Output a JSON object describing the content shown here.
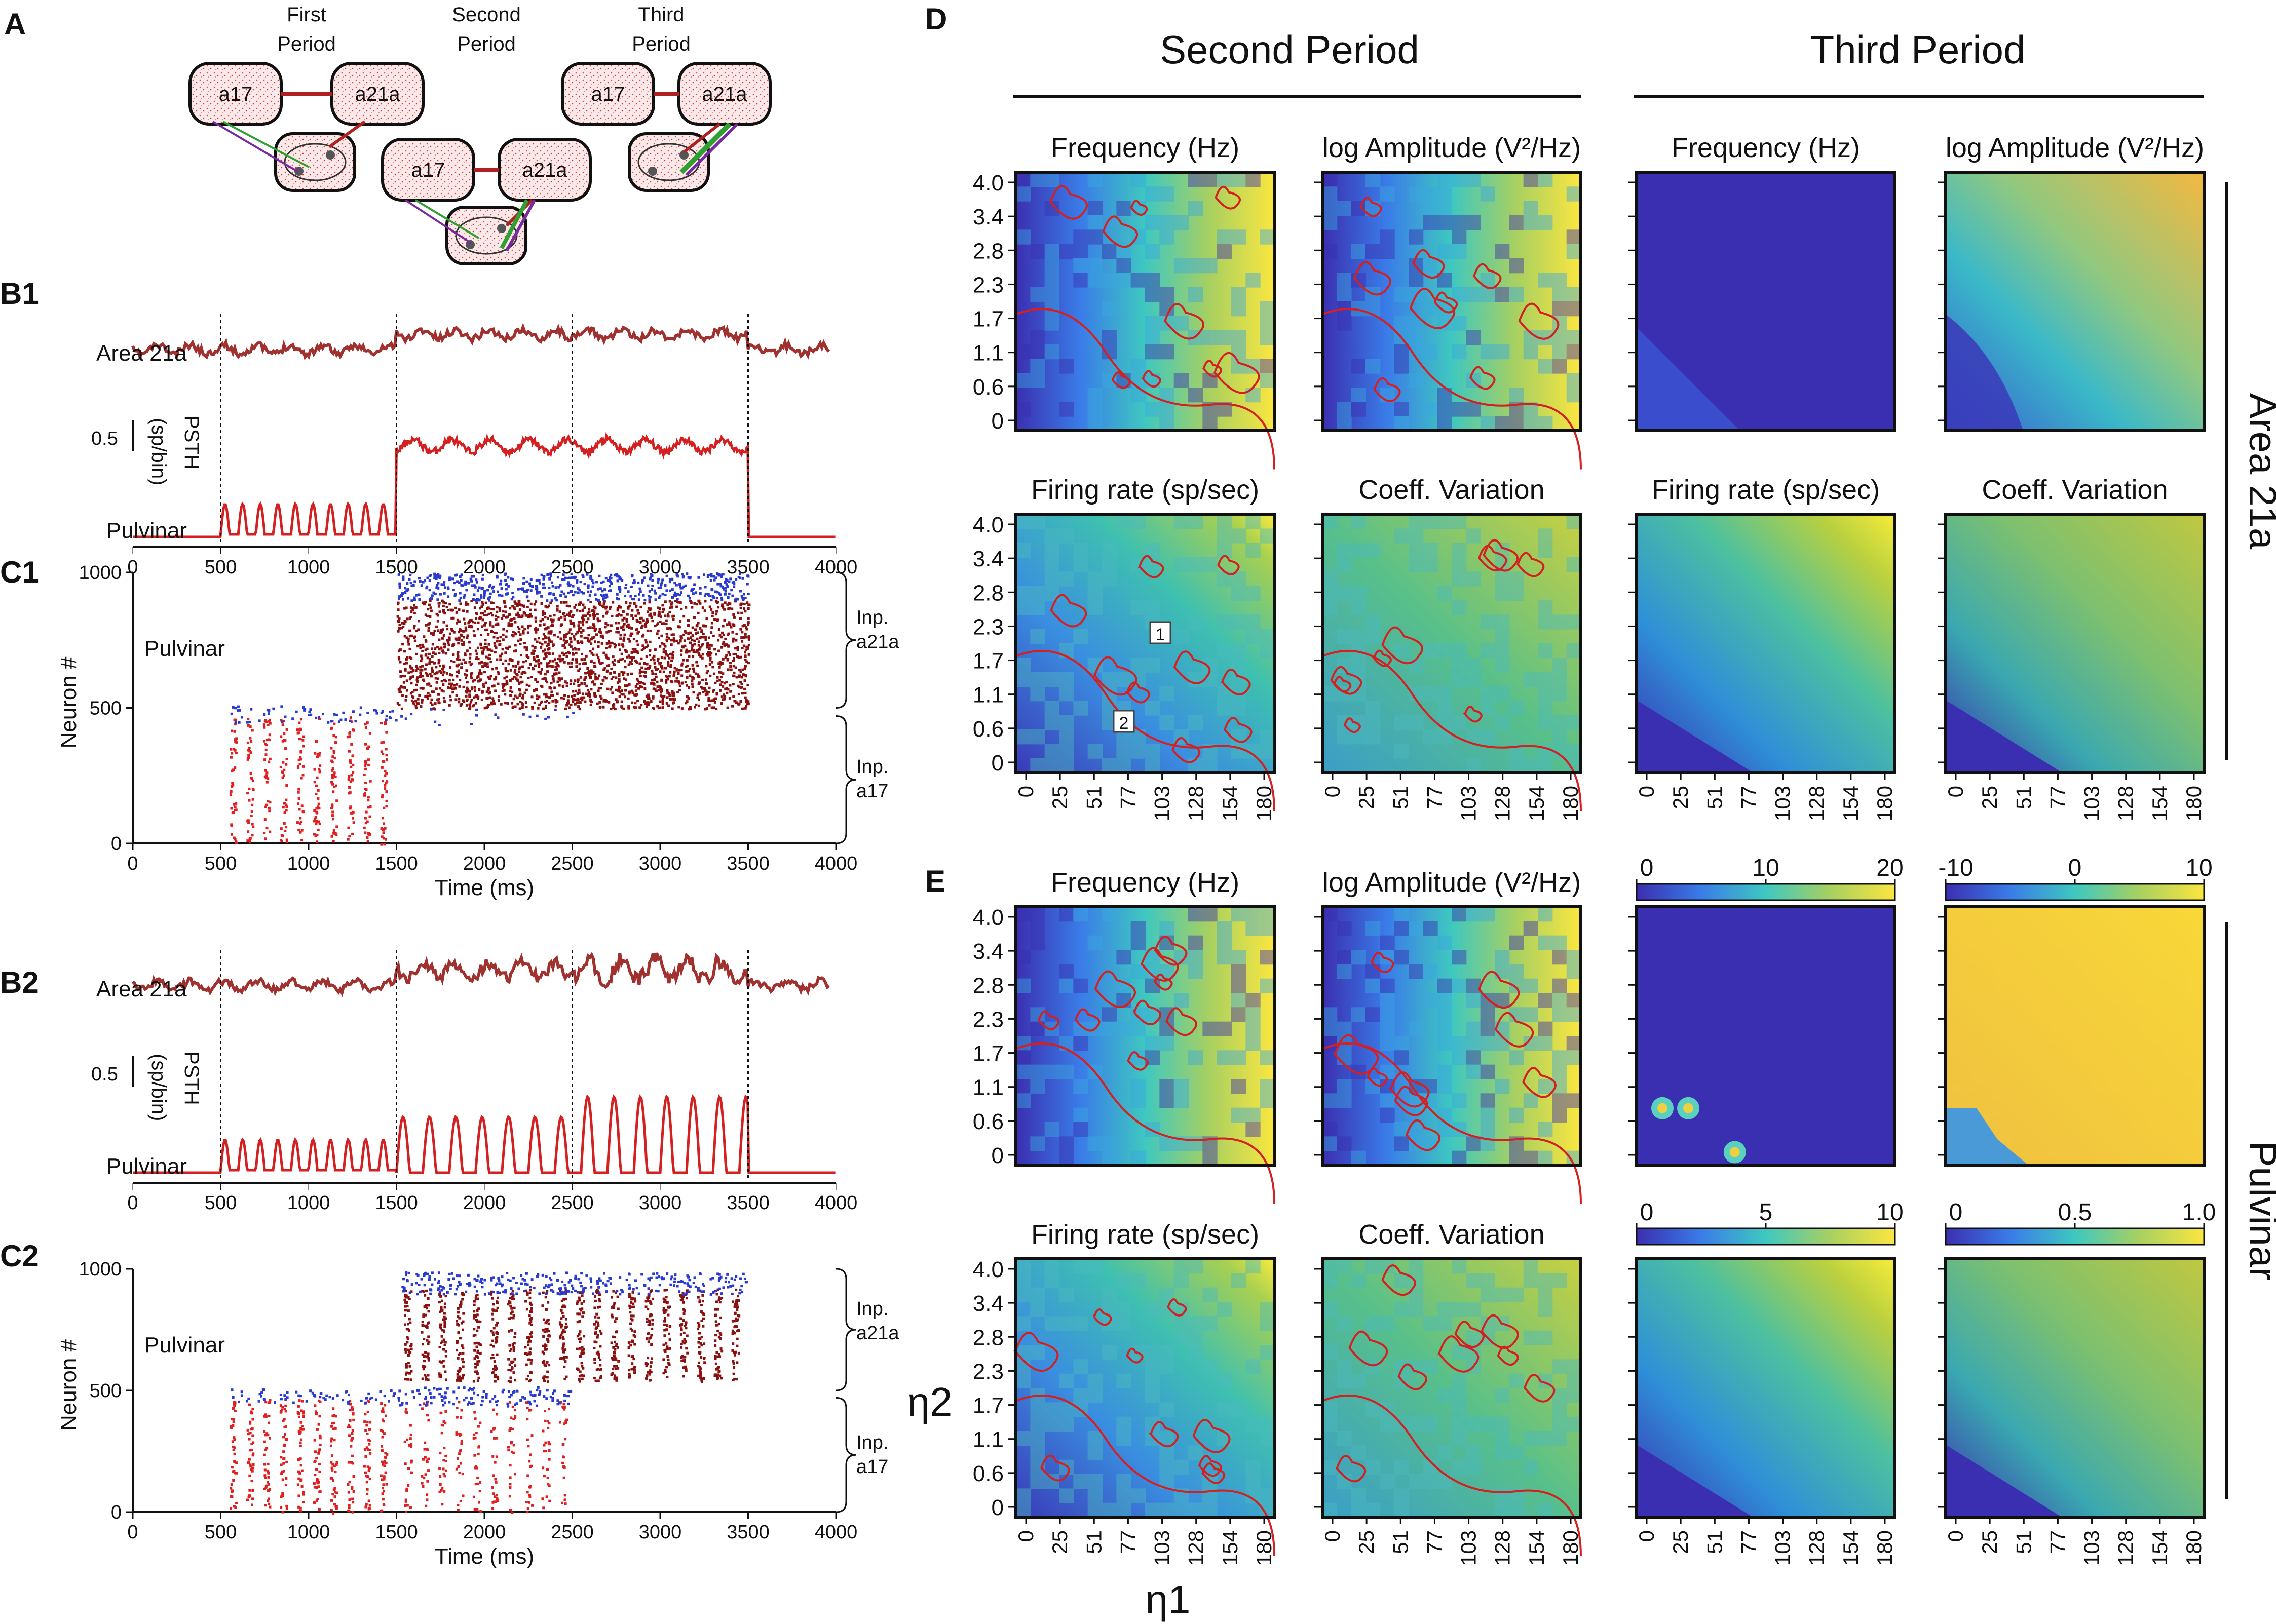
{
  "panels": {
    "A": "A",
    "B1": "B1",
    "C1": "C1",
    "B2": "B2",
    "C2": "C2",
    "D": "D",
    "E": "E"
  },
  "schematic": {
    "periods": [
      "First\nPeriod",
      "Second\nPeriod",
      "Third\nPeriod"
    ],
    "area17": "a17",
    "area21a": "a21a"
  },
  "traces": {
    "area21a_label": "Area  21a",
    "pulvinar_label": "Pulvinar",
    "psth_label": "PSTH",
    "psth_units": "(sp/bin)",
    "scale_value": "0.5",
    "x_ticks": [
      "0",
      "500",
      "1000",
      "1500",
      "2000",
      "2500",
      "3000",
      "3500",
      "4000"
    ]
  },
  "raster": {
    "region_label": "Pulvinar",
    "ylabel": "Neuron  #",
    "xlabel": "Time  (ms)",
    "y_ticks": [
      "0",
      "500",
      "1000"
    ],
    "inp_a21a": "Inp.\na21a",
    "inp_a17": "Inp.\na17"
  },
  "grid": {
    "section_D_headers": [
      "Second  Period",
      "Third  Period"
    ],
    "titles_row1": [
      "Frequency  (Hz)",
      "log  Amplitude  (V²/Hz)",
      "Frequency  (Hz)",
      "log  Amplitude  (V²/Hz)"
    ],
    "titles_row2": [
      "Firing  rate  (sp/sec)",
      "Coeff.  Variation",
      "Firing  rate  (sp/sec)",
      "Coeff.  Variation"
    ],
    "y_ticks": [
      "4.0",
      "3.4",
      "2.8",
      "2.3",
      "1.7",
      "1.1",
      "0.6",
      "0"
    ],
    "x_ticks": [
      "0",
      "25",
      "51",
      "77",
      "103",
      "128",
      "154",
      "180"
    ],
    "eta1": "η1",
    "eta2": "η2",
    "side_labels": [
      "Area  21a",
      "Pulvinar"
    ],
    "markers": [
      "1",
      "2"
    ]
  },
  "colorbars": [
    {
      "name": "frequency",
      "ticks": [
        "0",
        "10",
        "20"
      ]
    },
    {
      "name": "log-amplitude",
      "ticks": [
        "-10",
        "0",
        "10"
      ]
    },
    {
      "name": "firing-rate",
      "ticks": [
        "0",
        "5",
        "10"
      ]
    },
    {
      "name": "coeff-variation",
      "ticks": [
        "0",
        "0.5",
        "1.0"
      ]
    }
  ],
  "colors": {
    "area21a_trace": "#a0312f",
    "pulvinar_trace": "#d42020",
    "spike_red": "#e02020",
    "spike_darkred": "#8b1010",
    "spike_blue": "#2a3ad0",
    "contour": "#d42020"
  }
}
